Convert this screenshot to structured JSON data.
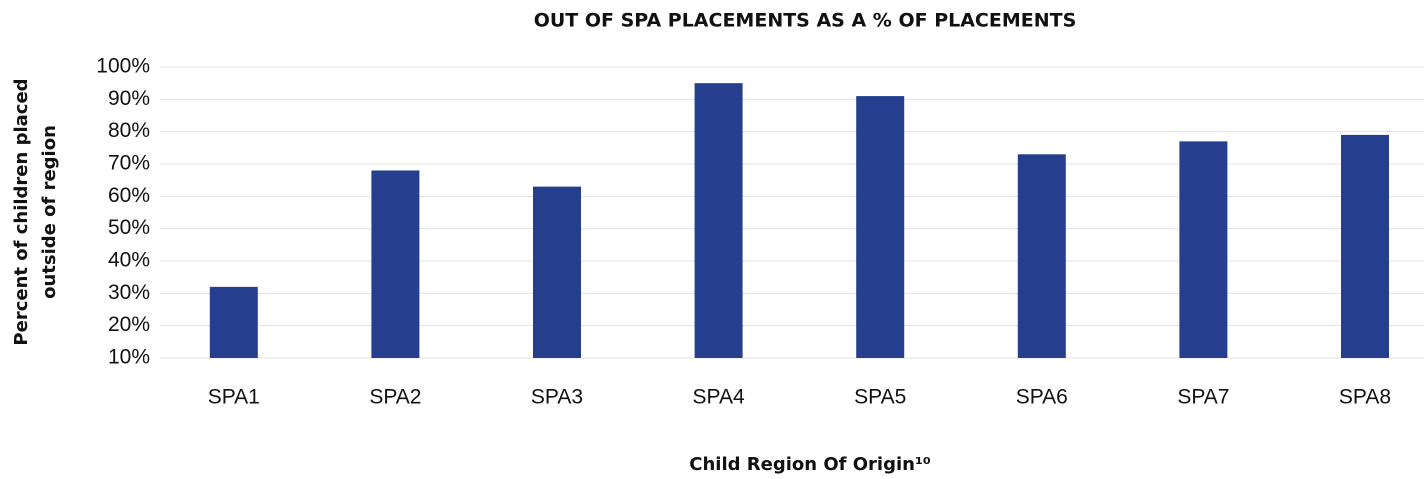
{
  "chart_data": {
    "type": "bar",
    "title": "OUT OF SPA PLACEMENTS AS A % OF PLACEMENTS",
    "x_label": "Child Region Of Origin¹⁰",
    "y_label": [
      "Percent of children placed",
      "outside of region"
    ],
    "categories": [
      "SPA1",
      "SPA2",
      "SPA3",
      "SPA4",
      "SPA5",
      "SPA6",
      "SPA7",
      "SPA8"
    ],
    "values": [
      32,
      68,
      63,
      95,
      91,
      73,
      77,
      79
    ],
    "color": "#253f8e",
    "ylim": [
      10,
      100
    ],
    "yticks": [
      {
        "value": 10,
        "label": "10%"
      },
      {
        "value": 20,
        "label": "20%"
      },
      {
        "value": 30,
        "label": "30%"
      },
      {
        "value": 40,
        "label": "40%"
      },
      {
        "value": 50,
        "label": "50%"
      },
      {
        "value": 60,
        "label": "60%"
      },
      {
        "value": 70,
        "label": "70%"
      },
      {
        "value": 80,
        "label": "80%"
      },
      {
        "value": 90,
        "label": "90%"
      },
      {
        "value": 100,
        "label": "100%"
      }
    ],
    "grid": true
  }
}
